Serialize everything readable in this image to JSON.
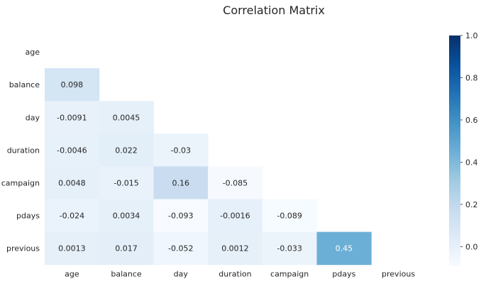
{
  "chart_data": {
    "type": "heatmap",
    "title": "Correlation Matrix",
    "rows": [
      "age",
      "balance",
      "day",
      "duration",
      "campaign",
      "pdays",
      "previous"
    ],
    "columns": [
      "age",
      "balance",
      "day",
      "duration",
      "campaign",
      "pdays",
      "previous"
    ],
    "mask": "upper-triangle-and-diagonal",
    "cells": [
      {
        "row": "balance",
        "col": "age",
        "value": 0.098,
        "label": "0.098"
      },
      {
        "row": "day",
        "col": "age",
        "value": -0.0091,
        "label": "-0.0091"
      },
      {
        "row": "day",
        "col": "balance",
        "value": 0.0045,
        "label": "0.0045"
      },
      {
        "row": "duration",
        "col": "age",
        "value": -0.0046,
        "label": "-0.0046"
      },
      {
        "row": "duration",
        "col": "balance",
        "value": 0.022,
        "label": "0.022"
      },
      {
        "row": "duration",
        "col": "day",
        "value": -0.03,
        "label": "-0.03"
      },
      {
        "row": "campaign",
        "col": "age",
        "value": 0.0048,
        "label": "0.0048"
      },
      {
        "row": "campaign",
        "col": "balance",
        "value": -0.015,
        "label": "-0.015"
      },
      {
        "row": "campaign",
        "col": "day",
        "value": 0.16,
        "label": "0.16"
      },
      {
        "row": "campaign",
        "col": "duration",
        "value": -0.085,
        "label": "-0.085"
      },
      {
        "row": "pdays",
        "col": "age",
        "value": -0.024,
        "label": "-0.024"
      },
      {
        "row": "pdays",
        "col": "balance",
        "value": 0.0034,
        "label": "0.0034"
      },
      {
        "row": "pdays",
        "col": "day",
        "value": -0.093,
        "label": "-0.093"
      },
      {
        "row": "pdays",
        "col": "duration",
        "value": -0.0016,
        "label": "-0.0016"
      },
      {
        "row": "pdays",
        "col": "campaign",
        "value": -0.089,
        "label": "-0.089"
      },
      {
        "row": "previous",
        "col": "age",
        "value": 0.0013,
        "label": "0.0013"
      },
      {
        "row": "previous",
        "col": "balance",
        "value": 0.017,
        "label": "0.017"
      },
      {
        "row": "previous",
        "col": "day",
        "value": -0.052,
        "label": "-0.052"
      },
      {
        "row": "previous",
        "col": "duration",
        "value": 0.0012,
        "label": "0.0012"
      },
      {
        "row": "previous",
        "col": "campaign",
        "value": -0.033,
        "label": "-0.033"
      },
      {
        "row": "previous",
        "col": "pdays",
        "value": 0.45,
        "label": "0.45"
      }
    ],
    "colorbar": {
      "range": [
        -0.093,
        1.0
      ],
      "ticks": [
        0.0,
        0.2,
        0.4,
        0.6,
        0.8,
        1.0
      ],
      "tick_labels": [
        "0.0",
        "0.2",
        "0.4",
        "0.6",
        "0.8",
        "1.0"
      ],
      "colormap": "Blues",
      "colors": [
        "#f7fbff",
        "#deebf7",
        "#c6dbef",
        "#9ecae1",
        "#6baed6",
        "#4292c6",
        "#2171b5",
        "#08519c",
        "#08306b"
      ]
    },
    "grid": false,
    "text_color_dark": "#262626",
    "text_color_light": "#ffffff"
  }
}
